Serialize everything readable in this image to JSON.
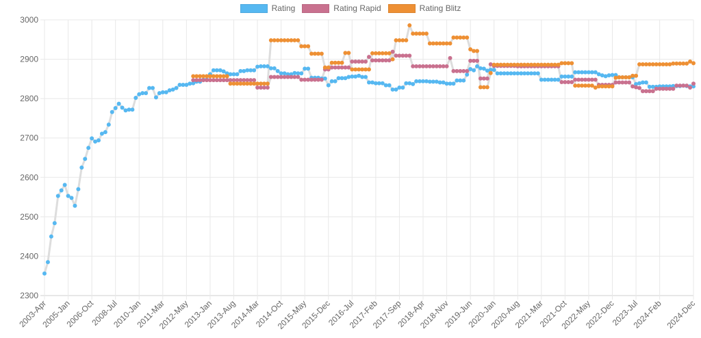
{
  "chart_data": {
    "type": "line",
    "title": "",
    "xlabel": "",
    "ylabel": "",
    "ylim": [
      2300,
      3000
    ],
    "yticks": [
      2300,
      2400,
      2500,
      2600,
      2700,
      2800,
      2900,
      3000
    ],
    "grid": true,
    "legend_position": "top",
    "line_color": "#dddddd",
    "xtick_labels": [
      "2003-Apr",
      "2005-Jan",
      "2006-Oct",
      "2008-Jul",
      "2010-Jan",
      "2011-Mar",
      "2012-May",
      "2013-Jan",
      "2013-Aug",
      "2014-Mar",
      "2014-Oct",
      "2015-May",
      "2015-Dec",
      "2016-Jul",
      "2017-Feb",
      "2017-Sep",
      "2018-Apr",
      "2018-Nov",
      "2019-Jun",
      "2020-Jan",
      "2020-Aug",
      "2021-Mar",
      "2021-Oct",
      "2022-May",
      "2022-Dec",
      "2023-Jul",
      "2024-Feb",
      "2024-Dec"
    ],
    "categories": [
      "2003-Apr",
      "2003-Jul",
      "2003-Oct",
      "2004-Jan",
      "2004-Apr",
      "2004-Jul",
      "2004-Oct",
      "2005-Jan",
      "2005-Apr",
      "2005-Jul",
      "2005-Oct",
      "2006-Jan",
      "2006-Apr",
      "2006-Jul",
      "2006-Oct",
      "2007-Jan",
      "2007-Apr",
      "2007-Jul",
      "2007-Oct",
      "2008-Jan",
      "2008-Apr",
      "2008-Jul",
      "2008-Oct",
      "2009-Jan",
      "2009-Apr",
      "2009-Jul",
      "2009-Sep",
      "2009-Nov",
      "2010-Jan",
      "2010-Mar",
      "2010-May",
      "2010-Jul",
      "2010-Sep",
      "2010-Nov",
      "2011-Jan",
      "2011-Mar",
      "2011-May",
      "2011-Jul",
      "2011-Sep",
      "2011-Nov",
      "2012-Jan",
      "2012-Mar",
      "2012-May",
      "2012-Jul",
      "2012-Aug",
      "2012-Sep",
      "2012-Oct",
      "2012-Nov",
      "2012-Dec",
      "2013-Jan",
      "2013-Feb",
      "2013-Mar",
      "2013-Apr",
      "2013-May",
      "2013-Jun",
      "2013-Jul",
      "2013-Aug",
      "2013-Sep",
      "2013-Oct",
      "2013-Nov",
      "2013-Dec",
      "2014-Jan",
      "2014-Feb",
      "2014-Mar",
      "2014-Apr",
      "2014-May",
      "2014-Jun",
      "2014-Jul",
      "2014-Aug",
      "2014-Sep",
      "2014-Oct",
      "2014-Nov",
      "2014-Dec",
      "2015-Jan",
      "2015-Feb",
      "2015-Mar",
      "2015-Apr",
      "2015-May",
      "2015-Jun",
      "2015-Jul",
      "2015-Aug",
      "2015-Sep",
      "2015-Oct",
      "2015-Nov",
      "2015-Dec",
      "2016-Jan",
      "2016-Feb",
      "2016-Mar",
      "2016-Apr",
      "2016-May",
      "2016-Jun",
      "2016-Jul",
      "2016-Aug",
      "2016-Sep",
      "2016-Oct",
      "2016-Nov",
      "2016-Dec",
      "2017-Jan",
      "2017-Feb",
      "2017-Mar",
      "2017-Apr",
      "2017-May",
      "2017-Jun",
      "2017-Jul",
      "2017-Aug",
      "2017-Sep",
      "2017-Oct",
      "2017-Nov",
      "2017-Dec",
      "2018-Jan",
      "2018-Feb",
      "2018-Mar",
      "2018-Apr",
      "2018-May",
      "2018-Jun",
      "2018-Jul",
      "2018-Aug",
      "2018-Sep",
      "2018-Oct",
      "2018-Nov",
      "2018-Dec",
      "2019-Jan",
      "2019-Feb",
      "2019-Mar",
      "2019-Apr",
      "2019-May",
      "2019-Jun",
      "2019-Jul",
      "2019-Aug",
      "2019-Sep",
      "2019-Oct",
      "2019-Nov",
      "2019-Dec",
      "2020-Jan",
      "2020-Feb",
      "2020-Mar",
      "2020-Apr",
      "2020-May",
      "2020-Jun",
      "2020-Jul",
      "2020-Aug",
      "2020-Sep",
      "2020-Oct",
      "2020-Nov",
      "2020-Dec",
      "2021-Jan",
      "2021-Feb",
      "2021-Mar",
      "2021-Apr",
      "2021-May",
      "2021-Jun",
      "2021-Jul",
      "2021-Aug",
      "2021-Sep",
      "2021-Oct",
      "2021-Nov",
      "2021-Dec",
      "2022-Jan",
      "2022-Feb",
      "2022-Mar",
      "2022-Apr",
      "2022-May",
      "2022-Jun",
      "2022-Jul",
      "2022-Aug",
      "2022-Sep",
      "2022-Oct",
      "2022-Nov",
      "2022-Dec",
      "2023-Jan",
      "2023-Feb",
      "2023-Mar",
      "2023-Apr",
      "2023-May",
      "2023-Jun",
      "2023-Jul",
      "2023-Aug",
      "2023-Sep",
      "2023-Oct",
      "2023-Nov",
      "2023-Dec",
      "2024-Jan",
      "2024-Feb",
      "2024-Mar",
      "2024-Apr",
      "2024-May",
      "2024-Jun",
      "2024-Jul",
      "2024-Aug",
      "2024-Sep",
      "2024-Oct",
      "2024-Nov",
      "2024-Dec"
    ],
    "series": [
      {
        "name": "Rating",
        "color": "#56b8f1",
        "values": [
          2356,
          2385,
          2450,
          2484,
          2553,
          2567,
          2581,
          2553,
          2548,
          2528,
          2570,
          2625,
          2647,
          2675,
          2699,
          2691,
          2694,
          2711,
          2715,
          2734,
          2766,
          2776,
          2787,
          2777,
          2770,
          2772,
          2772,
          2802,
          2811,
          2814,
          2814,
          2827,
          2827,
          2803,
          2814,
          2816,
          2816,
          2821,
          2823,
          2827,
          2835,
          2835,
          2835,
          2838,
          2839,
          2843,
          2843,
          2848,
          2848,
          2862,
          2872,
          2872,
          2872,
          2869,
          2864,
          2862,
          2862,
          2862,
          2870,
          2870,
          2872,
          2872,
          2872,
          2881,
          2882,
          2882,
          2882,
          2877,
          2877,
          2870,
          2864,
          2864,
          2862,
          2862,
          2865,
          2864,
          2864,
          2876,
          2876,
          2853,
          2853,
          2853,
          2851,
          2851,
          2834,
          2844,
          2844,
          2852,
          2852,
          2852,
          2855,
          2856,
          2856,
          2858,
          2855,
          2855,
          2841,
          2841,
          2839,
          2839,
          2839,
          2834,
          2834,
          2823,
          2823,
          2828,
          2828,
          2839,
          2839,
          2837,
          2844,
          2844,
          2844,
          2844,
          2843,
          2843,
          2843,
          2841,
          2841,
          2838,
          2838,
          2838,
          2846,
          2846,
          2846,
          2861,
          2875,
          2872,
          2882,
          2877,
          2876,
          2871,
          2873,
          2873,
          2864,
          2864,
          2864,
          2864,
          2864,
          2864,
          2864,
          2864,
          2864,
          2864,
          2864,
          2864,
          2864,
          2848,
          2848,
          2848,
          2848,
          2848,
          2848,
          2856,
          2856,
          2856,
          2856,
          2867,
          2867,
          2867,
          2867,
          2867,
          2867,
          2867,
          2862,
          2859,
          2857,
          2859,
          2860,
          2860,
          2854,
          2854,
          2854,
          2854,
          2854,
          2837,
          2839,
          2841,
          2841,
          2830,
          2830,
          2830,
          2831,
          2831,
          2831,
          2831,
          2832,
          2832,
          2832,
          2833,
          2832,
          2831,
          2831
        ]
      },
      {
        "name": "Rating Rapid",
        "color": "#c9718f",
        "values": [
          null,
          null,
          null,
          null,
          null,
          null,
          null,
          null,
          null,
          null,
          null,
          null,
          null,
          null,
          null,
          null,
          null,
          null,
          null,
          null,
          null,
          null,
          null,
          null,
          null,
          null,
          null,
          null,
          null,
          null,
          null,
          null,
          null,
          null,
          null,
          null,
          null,
          null,
          null,
          null,
          null,
          null,
          null,
          null,
          2847,
          2847,
          2847,
          2847,
          2847,
          2847,
          2847,
          2847,
          2847,
          2847,
          2847,
          2847,
          2847,
          2847,
          2847,
          2847,
          2847,
          2847,
          2847,
          2828,
          2828,
          2828,
          2828,
          2855,
          2855,
          2855,
          2855,
          2855,
          2855,
          2855,
          2855,
          2855,
          2848,
          2848,
          2848,
          2848,
          2848,
          2848,
          2848,
          2874,
          2874,
          2879,
          2879,
          2879,
          2879,
          2879,
          2879,
          2894,
          2894,
          2894,
          2894,
          2894,
          2906,
          2897,
          2897,
          2897,
          2897,
          2897,
          2897,
          2919,
          2909,
          2909,
          2909,
          2909,
          2909,
          2882,
          2882,
          2882,
          2882,
          2882,
          2882,
          2882,
          2882,
          2882,
          2882,
          2882,
          2903,
          2870,
          2870,
          2870,
          2870,
          2870,
          2896,
          2896,
          2896,
          2851,
          2851,
          2851,
          2887,
          2883,
          2883,
          2883,
          2883,
          2883,
          2883,
          2883,
          2882,
          2882,
          2882,
          2882,
          2882,
          2882,
          2882,
          2882,
          2882,
          2882,
          2882,
          2882,
          2882,
          2842,
          2842,
          2842,
          2842,
          2848,
          2848,
          2848,
          2848,
          2848,
          2848,
          2848,
          2835,
          2835,
          2835,
          2835,
          2835,
          2841,
          2841,
          2841,
          2841,
          2841,
          2831,
          2829,
          2827,
          2819,
          2819,
          2819,
          2819,
          2825,
          2825,
          2825,
          2825,
          2825,
          2825,
          2833,
          2833,
          2833,
          2833,
          2828,
          2838
        ]
      },
      {
        "name": "Rating Blitz",
        "color": "#ee9034",
        "values": [
          null,
          null,
          null,
          null,
          null,
          null,
          null,
          null,
          null,
          null,
          null,
          null,
          null,
          null,
          null,
          null,
          null,
          null,
          null,
          null,
          null,
          null,
          null,
          null,
          null,
          null,
          null,
          null,
          null,
          null,
          null,
          null,
          null,
          null,
          null,
          null,
          null,
          null,
          null,
          null,
          null,
          null,
          null,
          null,
          2857,
          2857,
          2857,
          2857,
          2857,
          2857,
          2857,
          2857,
          2857,
          2857,
          2857,
          2838,
          2838,
          2838,
          2838,
          2838,
          2838,
          2838,
          2838,
          2838,
          2838,
          2838,
          2838,
          2948,
          2948,
          2948,
          2948,
          2948,
          2948,
          2948,
          2948,
          2948,
          2933,
          2933,
          2933,
          2914,
          2914,
          2914,
          2914,
          2879,
          2879,
          2891,
          2891,
          2891,
          2891,
          2916,
          2916,
          2874,
          2874,
          2874,
          2874,
          2874,
          2874,
          2915,
          2915,
          2915,
          2915,
          2915,
          2915,
          2900,
          2948,
          2948,
          2948,
          2948,
          2986,
          2965,
          2965,
          2965,
          2965,
          2965,
          2940,
          2940,
          2940,
          2940,
          2940,
          2940,
          2940,
          2955,
          2955,
          2955,
          2955,
          2955,
          2925,
          2921,
          2921,
          2829,
          2829,
          2829,
          2865,
          2886,
          2886,
          2886,
          2886,
          2886,
          2886,
          2886,
          2886,
          2886,
          2886,
          2886,
          2886,
          2886,
          2886,
          2886,
          2886,
          2886,
          2886,
          2886,
          2886,
          2890,
          2890,
          2890,
          2890,
          2833,
          2833,
          2833,
          2833,
          2833,
          2833,
          2828,
          2831,
          2831,
          2831,
          2831,
          2831,
          2853,
          2854,
          2854,
          2854,
          2854,
          2858,
          2858,
          2887,
          2887,
          2887,
          2887,
          2887,
          2887,
          2887,
          2887,
          2887,
          2887,
          2889,
          2889,
          2889,
          2889,
          2889,
          2894,
          2890
        ]
      }
    ]
  }
}
